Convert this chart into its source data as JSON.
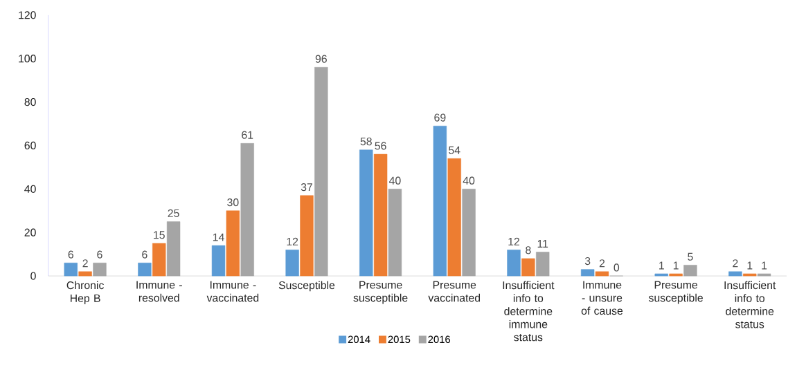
{
  "chart_data": {
    "type": "bar",
    "categories": [
      "Chronic Hep B",
      "Immune - resolved",
      "Immune - vaccinated",
      "Susceptible",
      "Presume susceptible",
      "Presume vaccinated",
      "Insufficient info to determine immune status",
      "Immune - unsure of cause",
      "Presume susceptible",
      "Insufficient info to determine status"
    ],
    "series": [
      {
        "name": "2014",
        "color": "#5b9bd5",
        "values": [
          6,
          6,
          14,
          12,
          58,
          69,
          12,
          3,
          1,
          2
        ]
      },
      {
        "name": "2015",
        "color": "#ed7d31",
        "values": [
          2,
          15,
          30,
          37,
          56,
          54,
          8,
          2,
          1,
          1
        ]
      },
      {
        "name": "2016",
        "color": "#a5a5a5",
        "values": [
          6,
          25,
          61,
          96,
          40,
          40,
          11,
          0,
          5,
          1
        ]
      }
    ],
    "ylim": [
      0,
      120
    ],
    "yticks": [
      0,
      20,
      40,
      60,
      80,
      100,
      120
    ],
    "data_labels": true,
    "grid": false,
    "legend": "bottom"
  }
}
